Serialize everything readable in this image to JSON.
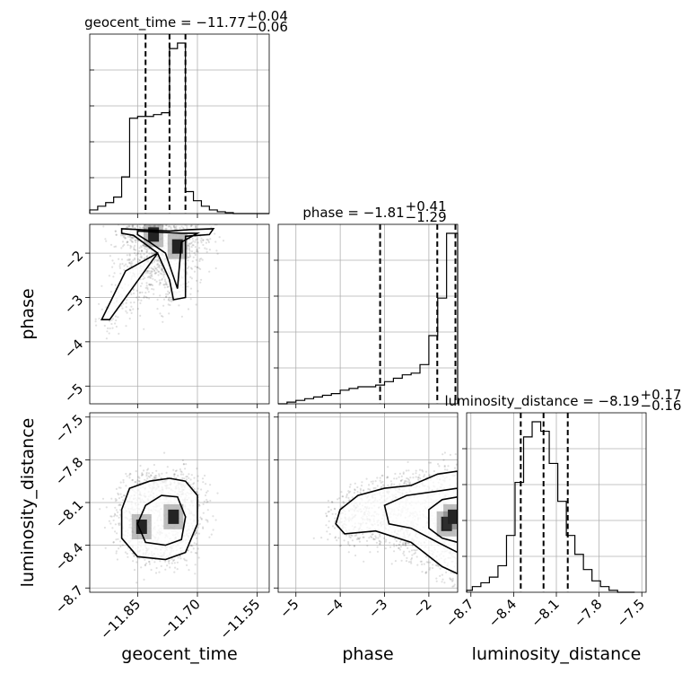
{
  "chart_data": {
    "type": "scatter",
    "variables": [
      {
        "name": "geocent_time",
        "axis_label": "geocent_time",
        "title": {
          "prefix": "geocent_time = ",
          "value": "−11.77",
          "plus": "+0.04",
          "minus": "−0.06"
        },
        "range": [
          -11.97,
          -11.52
        ],
        "ticks": [
          -11.85,
          -11.7,
          -11.55
        ],
        "tick_labels": [
          "−11.85",
          "−11.70",
          "−11.55"
        ],
        "quantiles": [
          -11.83,
          -11.77,
          -11.73
        ],
        "hist": {
          "edges": [
            -11.97,
            -11.95,
            -11.93,
            -11.91,
            -11.89,
            -11.87,
            -11.85,
            -11.83,
            -11.81,
            -11.79,
            -11.77,
            -11.75,
            -11.73,
            -11.71,
            -11.69,
            -11.67,
            -11.65,
            -11.63,
            -11.61,
            -11.59,
            -11.57,
            -11.55,
            -11.52
          ],
          "counts": [
            0.02,
            0.04,
            0.06,
            0.09,
            0.2,
            0.52,
            0.53,
            0.53,
            0.54,
            0.55,
            0.9,
            0.93,
            0.12,
            0.07,
            0.04,
            0.02,
            0.01,
            0.005,
            0,
            0,
            0,
            0
          ]
        }
      },
      {
        "name": "phase",
        "axis_label": "phase",
        "title": {
          "prefix": "phase = ",
          "value": "−1.81",
          "plus": "+0.41",
          "minus": "−1.29"
        },
        "range": [
          -5.4,
          -1.35
        ],
        "ticks": [
          -5,
          -4,
          -3,
          -2
        ],
        "tick_labels": [
          "−5",
          "−4",
          "−3",
          "−2"
        ],
        "quantiles": [
          -3.1,
          -1.81,
          -1.4
        ],
        "hist": {
          "edges": [
            -5.4,
            -5.2,
            -5.0,
            -4.8,
            -4.6,
            -4.4,
            -4.2,
            -4.0,
            -3.8,
            -3.6,
            -3.4,
            -3.2,
            -3.0,
            -2.8,
            -2.6,
            -2.4,
            -2.2,
            -2.0,
            -1.8,
            -1.6,
            -1.35
          ],
          "counts": [
            0.0,
            0.01,
            0.02,
            0.03,
            0.04,
            0.05,
            0.06,
            0.08,
            0.09,
            0.1,
            0.1,
            0.11,
            0.13,
            0.15,
            0.17,
            0.18,
            0.23,
            0.4,
            0.62,
            1.0
          ]
        }
      },
      {
        "name": "luminosity_distance",
        "axis_label": "luminosity_distance",
        "title": {
          "prefix": "luminosity_distance = ",
          "value": "−8.19",
          "plus": "+0.17",
          "minus": "−0.16"
        },
        "range": [
          -8.73,
          -7.47
        ],
        "ticks": [
          -8.7,
          -8.4,
          -8.1,
          -7.8,
          -7.5
        ],
        "tick_labels": [
          "−8.7",
          "−8.4",
          "−8.1",
          "−7.8",
          "−7.5"
        ],
        "quantiles": [
          -8.35,
          -8.19,
          -8.02
        ],
        "hist": {
          "edges": [
            -8.73,
            -8.69,
            -8.63,
            -8.57,
            -8.51,
            -8.45,
            -8.39,
            -8.33,
            -8.27,
            -8.21,
            -8.15,
            -8.09,
            -8.03,
            -7.97,
            -7.91,
            -7.85,
            -7.79,
            -7.73,
            -7.67,
            -7.61,
            -7.55
          ],
          "counts": [
            0.01,
            0.03,
            0.05,
            0.08,
            0.14,
            0.3,
            0.58,
            0.82,
            0.9,
            0.85,
            0.68,
            0.48,
            0.3,
            0.2,
            0.12,
            0.06,
            0.03,
            0.01,
            0.0,
            0.0
          ]
        }
      }
    ],
    "pairs": [
      {
        "x": "geocent_time",
        "y": "phase",
        "peaks": [
          [
            -11.81,
            -1.58
          ],
          [
            -11.75,
            -1.85
          ]
        ],
        "contours": [
          [
            [
              -11.89,
              -1.45
            ],
            [
              -11.82,
              -1.48
            ],
            [
              -11.77,
              -1.5
            ],
            [
              -11.72,
              -1.47
            ],
            [
              -11.66,
              -1.45
            ],
            [
              -11.67,
              -1.58
            ],
            [
              -11.73,
              -1.62
            ],
            [
              -11.73,
              -2.2
            ],
            [
              -11.73,
              -3.0
            ],
            [
              -11.76,
              -3.05
            ],
            [
              -11.77,
              -2.6
            ],
            [
              -11.79,
              -2.2
            ],
            [
              -11.8,
              -2.0
            ],
            [
              -11.88,
              -2.4
            ],
            [
              -11.94,
              -3.5
            ],
            [
              -11.92,
              -3.5
            ],
            [
              -11.84,
              -2.5
            ],
            [
              -11.8,
              -2.0
            ],
            [
              -11.86,
              -1.6
            ],
            [
              -11.89,
              -1.55
            ]
          ],
          [
            [
              -11.85,
              -1.5
            ],
            [
              -11.79,
              -1.53
            ],
            [
              -11.74,
              -1.55
            ],
            [
              -11.7,
              -1.55
            ],
            [
              -11.74,
              -1.75
            ],
            [
              -11.75,
              -2.8
            ],
            [
              -11.78,
              -2.0
            ],
            [
              -11.82,
              -1.75
            ],
            [
              -11.85,
              -1.58
            ]
          ]
        ]
      },
      {
        "x": "geocent_time",
        "y": "luminosity_distance",
        "peaks": [
          [
            -11.76,
            -8.2
          ],
          [
            -11.84,
            -8.27
          ]
        ],
        "contours": [
          [
            [
              -11.87,
              -8.0
            ],
            [
              -11.82,
              -7.95
            ],
            [
              -11.77,
              -7.93
            ],
            [
              -11.73,
              -7.95
            ],
            [
              -11.7,
              -8.05
            ],
            [
              -11.7,
              -8.25
            ],
            [
              -11.73,
              -8.45
            ],
            [
              -11.78,
              -8.5
            ],
            [
              -11.85,
              -8.48
            ],
            [
              -11.89,
              -8.35
            ],
            [
              -11.89,
              -8.15
            ]
          ],
          [
            [
              -11.83,
              -8.12
            ],
            [
              -11.79,
              -8.05
            ],
            [
              -11.75,
              -8.06
            ],
            [
              -11.73,
              -8.2
            ],
            [
              -11.74,
              -8.36
            ],
            [
              -11.78,
              -8.4
            ],
            [
              -11.83,
              -8.38
            ],
            [
              -11.85,
              -8.25
            ]
          ]
        ]
      },
      {
        "x": "phase",
        "y": "luminosity_distance",
        "peaks": [
          [
            -1.6,
            -8.25
          ],
          [
            -1.45,
            -8.2
          ]
        ],
        "contours": [
          [
            [
              -4.0,
              -8.15
            ],
            [
              -3.6,
              -8.05
            ],
            [
              -3.0,
              -8.0
            ],
            [
              -2.4,
              -7.98
            ],
            [
              -1.8,
              -7.9
            ],
            [
              -1.35,
              -7.88
            ],
            [
              -1.35,
              -8.6
            ],
            [
              -1.7,
              -8.55
            ],
            [
              -2.4,
              -8.38
            ],
            [
              -3.2,
              -8.3
            ],
            [
              -3.9,
              -8.32
            ],
            [
              -4.1,
              -8.25
            ]
          ],
          [
            [
              -3.0,
              -8.12
            ],
            [
              -2.5,
              -8.05
            ],
            [
              -1.8,
              -8.02
            ],
            [
              -1.35,
              -8.0
            ],
            [
              -1.35,
              -8.45
            ],
            [
              -1.8,
              -8.38
            ],
            [
              -2.4,
              -8.28
            ],
            [
              -2.9,
              -8.25
            ]
          ],
          [
            [
              -2.0,
              -8.15
            ],
            [
              -1.7,
              -8.08
            ],
            [
              -1.35,
              -8.06
            ],
            [
              -1.35,
              -8.38
            ],
            [
              -1.7,
              -8.35
            ],
            [
              -2.0,
              -8.28
            ]
          ]
        ]
      }
    ]
  }
}
